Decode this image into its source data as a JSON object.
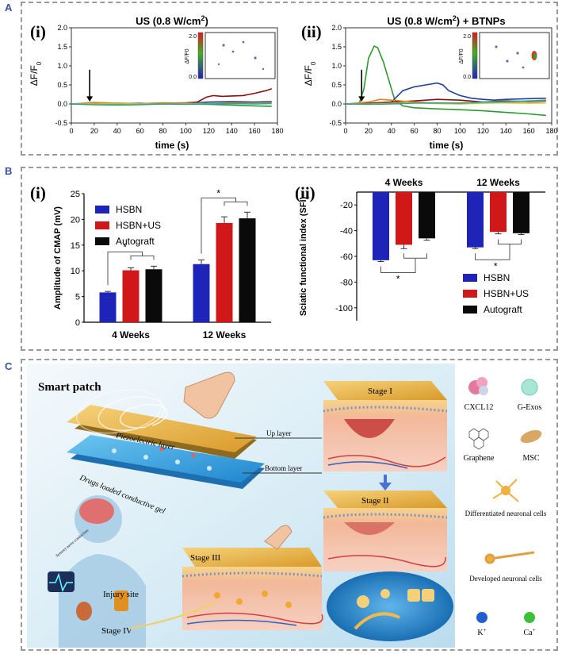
{
  "panel_a": {
    "label": "A",
    "left": {
      "sub": "(i)",
      "title_pre": "US (0.8 W/cm",
      "title_sup": "2",
      "title_post": ")",
      "ylabel": "ΔF/F",
      "ylabel_sub": "0",
      "xlabel": "time (s)",
      "inset": {
        "max": "2.0",
        "min": "0.0",
        "label": "ΔF/F0"
      }
    },
    "right": {
      "sub": "(ii)",
      "title_pre": "US (0.8 W/cm",
      "title_sup": "2",
      "title_post": ") + BTNPs",
      "ylabel": "ΔF/F",
      "ylabel_sub": "0",
      "xlabel": "time (s)",
      "inset": {
        "max": "2.0",
        "min": "0.0",
        "label": "ΔF/F0"
      }
    }
  },
  "panel_b": {
    "label": "B",
    "left": {
      "sub": "(i)"
    },
    "right": {
      "sub": "(ii)"
    },
    "star": "*"
  },
  "panel_c": {
    "label": "C",
    "title": "Smart patch",
    "labels": {
      "piezo": "Piezoelectric layer",
      "drugs": "Drugs loaded conductive gel",
      "up": "Up layer",
      "bottom": "Bottom layer",
      "stage1": "Stage I",
      "stage2": "Stage II",
      "stage3": "Stage III",
      "stage4": "Stage IV",
      "injury": "Injury site",
      "sensory": "Sensory nerve conduction"
    },
    "legend": {
      "cxcl12": "CXCL12",
      "gexos": "G-Exos",
      "graphene": "Graphene",
      "msc": "MSC",
      "diff": "Differentiated neuronal cells",
      "dev": "Developed neuronal cells",
      "k": "K",
      "k_sup": "+",
      "ca": "Ca",
      "ca_sup": "+"
    }
  },
  "chart_data": [
    {
      "type": "line",
      "title": "US (0.8 W/cm2)",
      "xlabel": "time (s)",
      "ylabel": "ΔF/F0",
      "xlim": [
        0,
        180
      ],
      "ylim": [
        -0.5,
        2.0
      ],
      "xticks": [
        0,
        20,
        40,
        60,
        80,
        100,
        120,
        140,
        160,
        180
      ],
      "yticks": [
        -0.5,
        0.0,
        0.5,
        1.0,
        1.5,
        2.0
      ],
      "annotations": [
        {
          "type": "arrow",
          "x": 16
        }
      ],
      "series": [
        {
          "name": "dark red",
          "color": "#8b1010",
          "x": [
            0,
            20,
            40,
            60,
            80,
            100,
            110,
            118,
            124,
            132,
            140,
            150,
            160,
            170,
            175
          ],
          "y": [
            0,
            0,
            0.02,
            0.01,
            0.02,
            0.03,
            0.05,
            0.18,
            0.22,
            0.2,
            0.21,
            0.22,
            0.28,
            0.35,
            0.4
          ]
        },
        {
          "name": "green",
          "color": "#2e9a2e",
          "x": [
            0,
            20,
            40,
            60,
            80,
            100,
            120,
            140,
            160,
            175
          ],
          "y": [
            0,
            0,
            -0.02,
            0,
            0.01,
            0,
            -0.01,
            -0.03,
            -0.05,
            -0.06
          ]
        },
        {
          "name": "blue",
          "color": "#1f3f9a",
          "x": [
            0,
            20,
            40,
            60,
            80,
            100,
            120,
            140,
            160,
            175
          ],
          "y": [
            0,
            -0.01,
            0.01,
            0.02,
            0,
            0.02,
            0.05,
            0.06,
            0.05,
            0.06
          ]
        },
        {
          "name": "orange",
          "color": "#e08020",
          "x": [
            0,
            20,
            40,
            60,
            80,
            100,
            120,
            140,
            160,
            175
          ],
          "y": [
            0,
            0.04,
            0.02,
            0.01,
            0.03,
            0.02,
            0.01,
            0.03,
            0.02,
            0.03
          ]
        },
        {
          "name": "yellow",
          "color": "#c8c020",
          "x": [
            0,
            20,
            40,
            60,
            80,
            100,
            120,
            140,
            160,
            175
          ],
          "y": [
            0,
            0,
            0.01,
            0,
            -0.01,
            0,
            0.01,
            0,
            0.01,
            0.02
          ]
        },
        {
          "name": "teal",
          "color": "#2aa6a0",
          "x": [
            0,
            20,
            40,
            60,
            80,
            100,
            120,
            140,
            160,
            175
          ],
          "y": [
            0,
            -0.02,
            -0.03,
            -0.02,
            0,
            -0.01,
            0,
            0.01,
            0,
            0.01
          ]
        }
      ]
    },
    {
      "type": "line",
      "title": "US (0.8 W/cm2) + BTNPs",
      "xlabel": "time (s)",
      "ylabel": "ΔF/F0",
      "xlim": [
        0,
        180
      ],
      "ylim": [
        -0.5,
        2.0
      ],
      "xticks": [
        0,
        20,
        40,
        60,
        80,
        100,
        120,
        140,
        160,
        180
      ],
      "yticks": [
        -0.5,
        0.0,
        0.5,
        1.0,
        1.5,
        2.0
      ],
      "annotations": [
        {
          "type": "arrow",
          "x": 14
        }
      ],
      "series": [
        {
          "name": "green",
          "color": "#2e9a2e",
          "x": [
            0,
            12,
            16,
            20,
            25,
            28,
            33,
            38,
            43,
            50,
            60,
            80,
            100,
            120,
            140,
            160,
            175
          ],
          "y": [
            0,
            0.02,
            0.4,
            1.2,
            1.52,
            1.48,
            1.1,
            0.6,
            0.1,
            -0.05,
            -0.1,
            -0.13,
            -0.15,
            -0.18,
            -0.22,
            -0.26,
            -0.3
          ]
        },
        {
          "name": "blue",
          "color": "#1f3f9a",
          "x": [
            0,
            20,
            40,
            50,
            60,
            70,
            80,
            85,
            90,
            100,
            110,
            120,
            130,
            140,
            160,
            175
          ],
          "y": [
            0,
            0,
            0.05,
            0.35,
            0.45,
            0.5,
            0.55,
            0.5,
            0.35,
            0.22,
            0.15,
            0.12,
            0.1,
            0.12,
            0.14,
            0.15
          ]
        },
        {
          "name": "dark red",
          "color": "#8b1010",
          "x": [
            0,
            20,
            40,
            60,
            80,
            100,
            120,
            140,
            160,
            175
          ],
          "y": [
            0,
            0.02,
            0.05,
            0.08,
            0.12,
            0.1,
            0.05,
            0.08,
            0.06,
            0.08
          ]
        },
        {
          "name": "orange",
          "color": "#e08020",
          "x": [
            0,
            20,
            30,
            40,
            60,
            80,
            100,
            120,
            140,
            160,
            175
          ],
          "y": [
            0,
            0.05,
            0.12,
            0.1,
            0.05,
            0.02,
            0.03,
            0.04,
            0.05,
            0.07,
            0.09
          ]
        },
        {
          "name": "yellow",
          "color": "#c8c020",
          "x": [
            0,
            20,
            40,
            60,
            80,
            100,
            120,
            140,
            160,
            175
          ],
          "y": [
            0,
            0,
            0.02,
            0.03,
            0.01,
            0,
            0.02,
            0.03,
            0.02,
            0.03
          ]
        },
        {
          "name": "teal",
          "color": "#2aa6a0",
          "x": [
            0,
            20,
            40,
            60,
            80,
            100,
            120,
            140,
            160,
            175
          ],
          "y": [
            0,
            -0.01,
            0,
            0.02,
            0.03,
            0.02,
            0.05,
            0.06,
            0.08,
            0.1
          ]
        }
      ]
    },
    {
      "type": "bar",
      "ylabel": "Amplitude of CMAP (mV)",
      "ylim": [
        0,
        25
      ],
      "yticks": [
        0,
        5,
        10,
        15,
        20,
        25
      ],
      "categories": [
        "4 Weeks",
        "12 Weeks"
      ],
      "legend_position": "top-left",
      "series": [
        {
          "name": "HSBN",
          "color": "#1f24b8",
          "values": [
            5.8,
            11.3
          ],
          "errors": [
            0.2,
            0.8
          ]
        },
        {
          "name": "HSBN+US",
          "color": "#d01818",
          "values": [
            10.1,
            19.3
          ],
          "errors": [
            0.5,
            1.2
          ]
        },
        {
          "name": "Autograft",
          "color": "#0a0a0a",
          "values": [
            10.3,
            20.2
          ],
          "errors": [
            0.6,
            1.2
          ]
        }
      ],
      "annotations": [
        "*",
        "*"
      ]
    },
    {
      "type": "bar",
      "ylabel": "Sciatic functional index (SFI)",
      "ylim": [
        -110,
        -10
      ],
      "yticks": [
        -20,
        -40,
        -60,
        -80,
        -100
      ],
      "categories": [
        "4 Weeks",
        "12 Weeks"
      ],
      "legend_position": "bottom-right",
      "series": [
        {
          "name": "HSBN",
          "color": "#1f24b8",
          "values": [
            -63,
            -53
          ],
          "errors": [
            1,
            1
          ]
        },
        {
          "name": "HSBN+US",
          "color": "#d01818",
          "values": [
            -51,
            -41
          ],
          "errors": [
            3,
            1.5
          ]
        },
        {
          "name": "Autograft",
          "color": "#0a0a0a",
          "values": [
            -46,
            -42
          ],
          "errors": [
            1.5,
            1
          ]
        }
      ],
      "annotations": [
        "*",
        "*"
      ]
    }
  ]
}
